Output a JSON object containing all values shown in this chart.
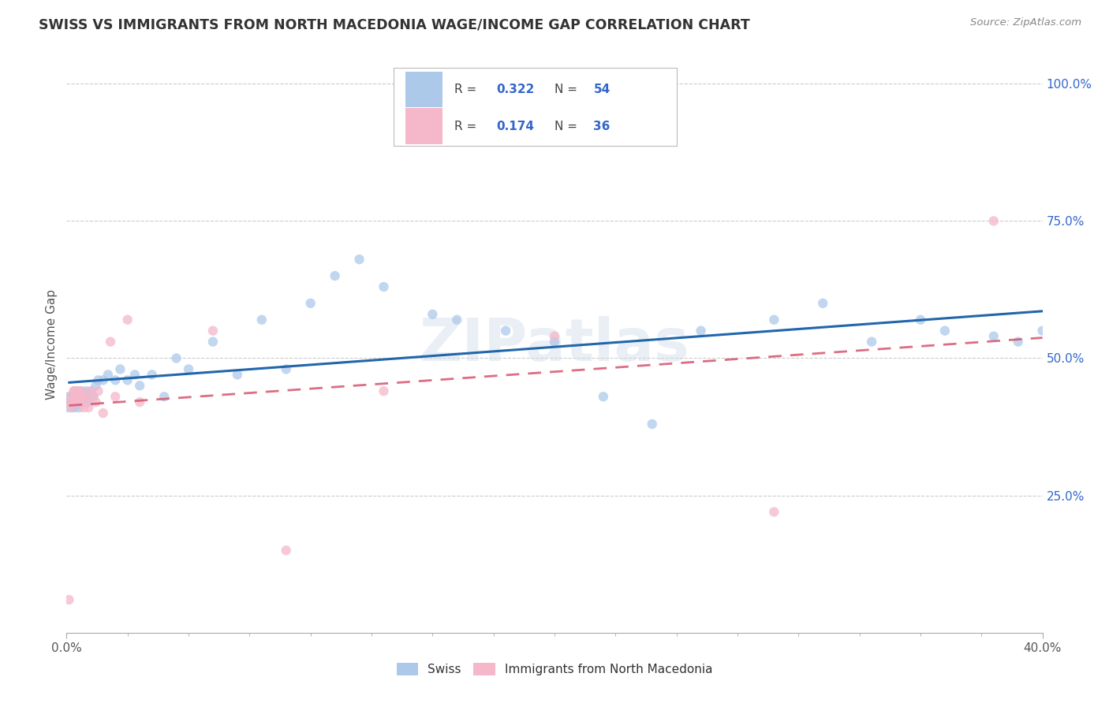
{
  "title": "SWISS VS IMMIGRANTS FROM NORTH MACEDONIA WAGE/INCOME GAP CORRELATION CHART",
  "source": "Source: ZipAtlas.com",
  "ylabel": "Wage/Income Gap",
  "ytick_vals": [
    0.25,
    0.5,
    0.75,
    1.0
  ],
  "ytick_labels": [
    "25.0%",
    "50.0%",
    "75.0%",
    "100.0%"
  ],
  "xlim": [
    0.0,
    0.4
  ],
  "ylim": [
    0.0,
    1.05
  ],
  "legend_swiss_R": "0.322",
  "legend_swiss_N": "54",
  "legend_immig_R": "0.174",
  "legend_immig_N": "36",
  "legend_swiss_label": "Swiss",
  "legend_immig_label": "Immigrants from North Macedonia",
  "swiss_color": "#adc9ea",
  "immig_color": "#f5b8ca",
  "swiss_line_color": "#2166ac",
  "immig_line_color": "#d6546e",
  "label_color": "#3366cc",
  "watermark": "ZIPatlas",
  "bg_color": "#ffffff",
  "grid_color": "#cccccc",
  "swiss_x": [
    0.001,
    0.002,
    0.002,
    0.003,
    0.003,
    0.004,
    0.004,
    0.005,
    0.005,
    0.006,
    0.006,
    0.007,
    0.007,
    0.008,
    0.008,
    0.009,
    0.01,
    0.011,
    0.012,
    0.013,
    0.015,
    0.017,
    0.02,
    0.022,
    0.025,
    0.028,
    0.03,
    0.035,
    0.04,
    0.045,
    0.05,
    0.06,
    0.07,
    0.08,
    0.09,
    0.1,
    0.11,
    0.12,
    0.13,
    0.15,
    0.16,
    0.18,
    0.2,
    0.22,
    0.24,
    0.26,
    0.29,
    0.31,
    0.33,
    0.35,
    0.36,
    0.38,
    0.39,
    0.4
  ],
  "swiss_y": [
    0.42,
    0.42,
    0.43,
    0.41,
    0.43,
    0.42,
    0.44,
    0.41,
    0.43,
    0.42,
    0.44,
    0.43,
    0.42,
    0.44,
    0.43,
    0.42,
    0.44,
    0.43,
    0.45,
    0.46,
    0.46,
    0.47,
    0.46,
    0.48,
    0.46,
    0.47,
    0.45,
    0.47,
    0.43,
    0.5,
    0.48,
    0.53,
    0.47,
    0.57,
    0.48,
    0.6,
    0.65,
    0.68,
    0.63,
    0.58,
    0.57,
    0.55,
    0.53,
    0.43,
    0.38,
    0.55,
    0.57,
    0.6,
    0.53,
    0.57,
    0.55,
    0.54,
    0.53,
    0.55
  ],
  "swiss_sizes": [
    350,
    80,
    80,
    80,
    80,
    80,
    80,
    80,
    80,
    80,
    80,
    80,
    80,
    80,
    80,
    80,
    80,
    80,
    80,
    80,
    80,
    80,
    80,
    80,
    80,
    80,
    80,
    80,
    80,
    80,
    80,
    80,
    80,
    80,
    80,
    80,
    80,
    80,
    80,
    80,
    80,
    80,
    80,
    80,
    80,
    80,
    80,
    80,
    80,
    80,
    80,
    80,
    80,
    80
  ],
  "immig_x": [
    0.001,
    0.001,
    0.002,
    0.002,
    0.003,
    0.003,
    0.003,
    0.004,
    0.004,
    0.004,
    0.005,
    0.005,
    0.005,
    0.006,
    0.006,
    0.006,
    0.007,
    0.007,
    0.008,
    0.008,
    0.009,
    0.01,
    0.011,
    0.012,
    0.013,
    0.015,
    0.018,
    0.02,
    0.025,
    0.03,
    0.06,
    0.09,
    0.13,
    0.2,
    0.29,
    0.38
  ],
  "immig_y": [
    0.06,
    0.42,
    0.41,
    0.43,
    0.44,
    0.42,
    0.44,
    0.43,
    0.42,
    0.44,
    0.42,
    0.44,
    0.43,
    0.44,
    0.42,
    0.43,
    0.41,
    0.43,
    0.43,
    0.42,
    0.41,
    0.44,
    0.43,
    0.42,
    0.44,
    0.4,
    0.53,
    0.43,
    0.57,
    0.42,
    0.55,
    0.15,
    0.44,
    0.54,
    0.22,
    0.75
  ],
  "immig_sizes": [
    80,
    80,
    80,
    80,
    80,
    80,
    80,
    80,
    80,
    80,
    80,
    80,
    80,
    80,
    80,
    80,
    80,
    80,
    80,
    80,
    80,
    80,
    80,
    80,
    80,
    80,
    80,
    80,
    80,
    80,
    80,
    80,
    80,
    80,
    80,
    80
  ]
}
